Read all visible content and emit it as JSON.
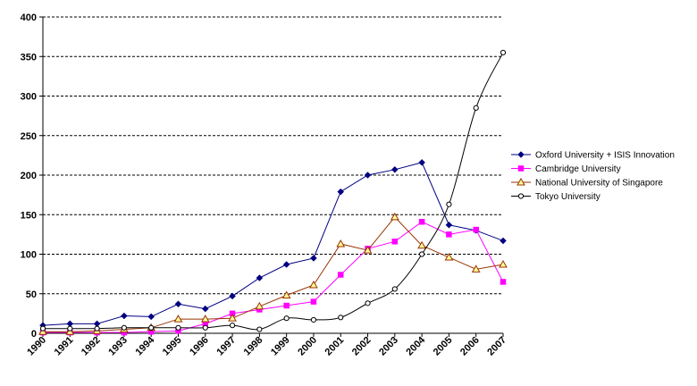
{
  "chart_data": {
    "type": "line",
    "title": "",
    "xlabel": "",
    "ylabel": "",
    "ylim": [
      0,
      400
    ],
    "yticks": [
      0,
      50,
      100,
      150,
      200,
      250,
      300,
      350,
      400
    ],
    "grid": "horizontal-dashed",
    "legend": "right",
    "categories": [
      "1990",
      "1991",
      "1992",
      "1993",
      "1994",
      "1995",
      "1996",
      "1997",
      "1998",
      "1999",
      "2000",
      "2001",
      "2002",
      "2003",
      "2004",
      "2005",
      "2006",
      "2007"
    ],
    "series": [
      {
        "name": "Oxford University + ISIS Innovation",
        "color": "#000080",
        "marker": "diamond-filled",
        "smooth": false,
        "values": [
          10,
          12,
          12,
          22,
          21,
          37,
          31,
          47,
          70,
          87,
          95,
          179,
          200,
          207,
          216,
          137,
          130,
          117
        ]
      },
      {
        "name": "Cambridge University",
        "color": "#ff00ff",
        "marker": "square-filled",
        "smooth": false,
        "values": [
          1,
          1,
          1,
          1,
          2,
          3,
          12,
          25,
          30,
          35,
          40,
          74,
          107,
          116,
          141,
          125,
          131,
          65
        ]
      },
      {
        "name": "National University of Singapore",
        "color": "#993300",
        "marker": "triangle-yellow",
        "smooth": false,
        "values": [
          2,
          2,
          3,
          5,
          7,
          18,
          18,
          19,
          34,
          48,
          61,
          113,
          105,
          147,
          111,
          96,
          81,
          87
        ]
      },
      {
        "name": "Tokyo University",
        "color": "#000000",
        "marker": "circle-open",
        "smooth": true,
        "values": [
          6,
          6,
          6,
          7,
          7,
          7,
          7,
          10,
          5,
          19,
          17,
          20,
          38,
          56,
          100,
          163,
          285,
          355
        ]
      }
    ]
  }
}
